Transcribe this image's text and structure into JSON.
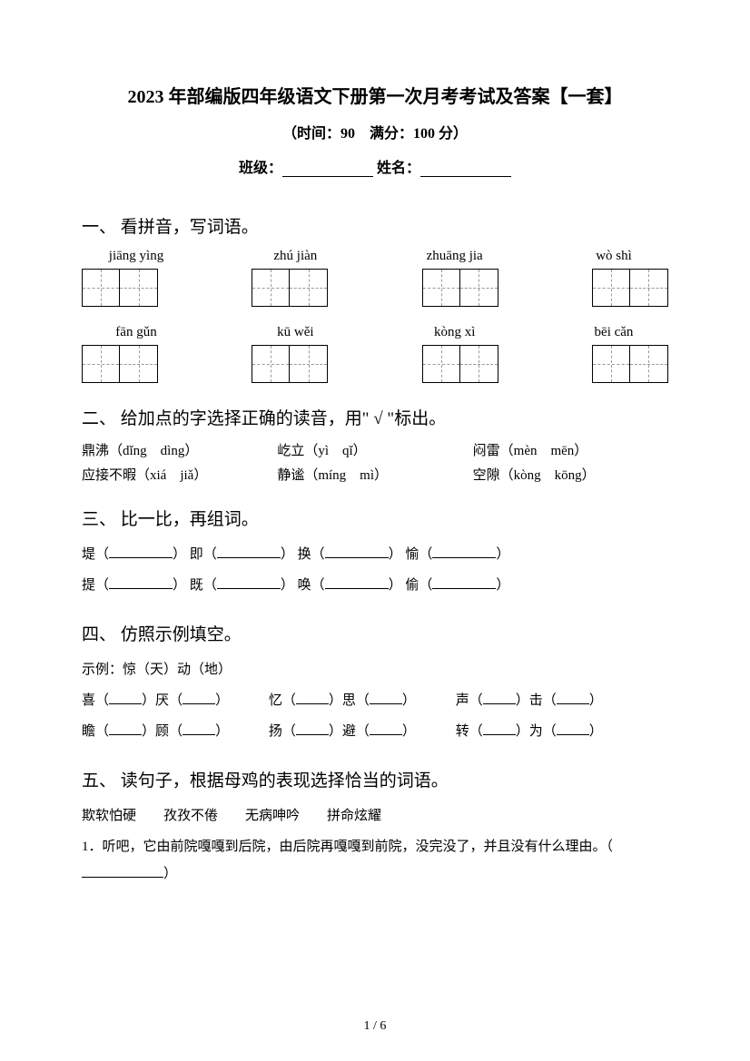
{
  "header": {
    "title": "2023 年部编版四年级语文下册第一次月考考试及答案【一套】",
    "subtitle": "（时间：90　满分：100 分）",
    "class_label": "班级：",
    "name_label": "姓名："
  },
  "q1": {
    "title": "一、  看拼音，写词语。",
    "pinyin_row1": [
      "jiāng yìng",
      "zhú jiàn",
      "zhuāng jia",
      "wò shì"
    ],
    "pinyin_row2": [
      "fān gǔn",
      "kū wěi",
      "kòng xì",
      "bēi cǎn"
    ]
  },
  "q2": {
    "title": "二、  给加点的字选择正确的读音，用\" √ \"标出。",
    "items": [
      [
        "鼎沸（dǐng　dìng）",
        "屹立（yì　qǐ）",
        "闷雷（mèn　mēn）"
      ],
      [
        "应接不暇（xiá　jiǎ）",
        "静谧（míng　mì）",
        "空隙（kòng　kōng）"
      ]
    ]
  },
  "q3": {
    "title": "三、  比一比，再组词。",
    "row1": [
      {
        "char": "堤",
        "sep": "即",
        "sep2": "换",
        "sep3": "愉"
      }
    ],
    "row1_chars": [
      "堤",
      "即",
      "换",
      "愉"
    ],
    "row2_chars": [
      "提",
      "既",
      "唤",
      "偷"
    ]
  },
  "q4": {
    "title": "四、  仿照示例填空。",
    "example": "示例：惊（天）动（地）",
    "row1": [
      "喜",
      "厌",
      "忆",
      "思",
      "声",
      "击"
    ],
    "row2": [
      "瞻",
      "顾",
      "扬",
      "避",
      "转",
      "为"
    ]
  },
  "q5": {
    "title": "五、  读句子，根据母鸡的表现选择恰当的词语。",
    "words": "欺软怕硬　　孜孜不倦　　无病呻吟　　拼命炫耀",
    "item1": "1．听吧，它由前院嘎嘎到后院，由后院再嘎嘎到前院，没完没了，并且没有什么理由。（"
  },
  "pagenum": "1 / 6"
}
